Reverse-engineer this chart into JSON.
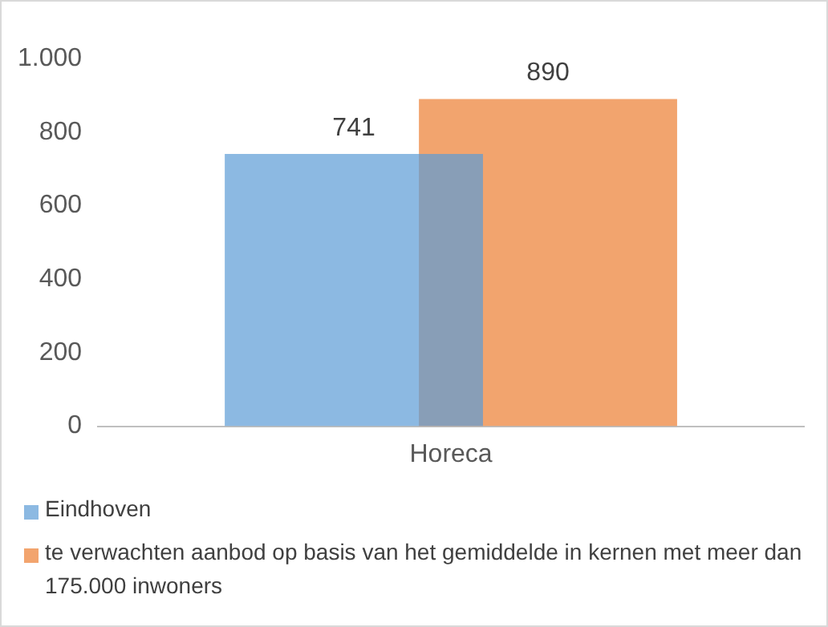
{
  "chart_data": {
    "type": "bar",
    "categories": [
      "Horeca"
    ],
    "series": [
      {
        "name": "Eindhoven",
        "color": "#5b9bd5",
        "values": [
          741
        ]
      },
      {
        "name": "te verwachten aanbod op basis van het gemiddelde in kernen met meer dan 175.000 inwoners",
        "color": "#ed7d31",
        "values": [
          890
        ]
      }
    ],
    "ylim": [
      0,
      1000
    ],
    "yticks": [
      0,
      200,
      400,
      600,
      800,
      {
        "value": 1000,
        "label": "1.000"
      }
    ],
    "grid": false,
    "data_labels": true,
    "legend": "bottom"
  }
}
